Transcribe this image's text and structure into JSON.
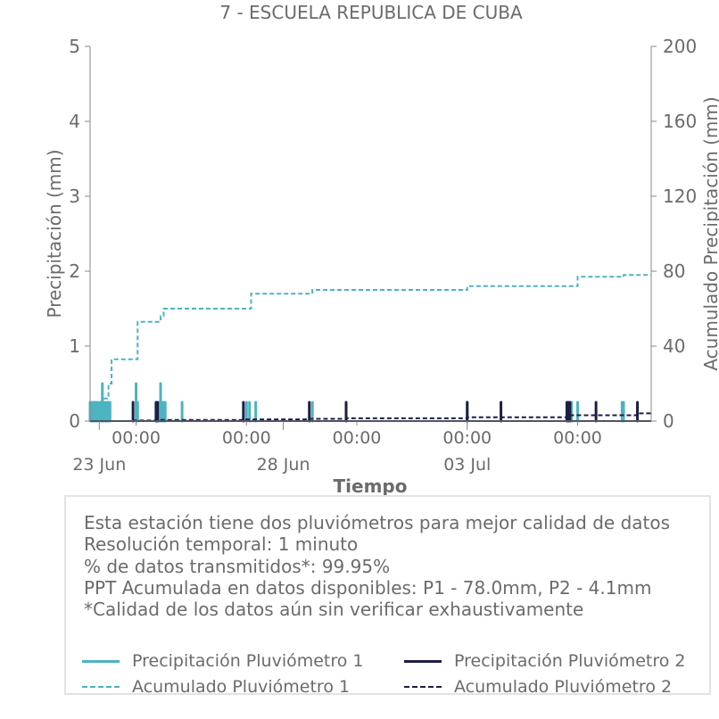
{
  "colors": {
    "p1": "#4db3c0",
    "p2": "#1c1f45",
    "axis": "#6b6b6b",
    "text": "#6b6b6b"
  },
  "info": {
    "lines": [
      "Esta estación tiene dos pluviómetros para mejor calidad de datos",
      "Resolución temporal: 1 minuto",
      "% de datos transmitidos*: 99.95%",
      "PPT Acumulada en datos disponibles: P1 - 78.0mm, P2 - 4.1mm",
      "*Calidad de los datos aún sin verificar exhaustivamente"
    ]
  },
  "legend": [
    {
      "label": "Precipitación Pluviómetro 1",
      "series": "p1",
      "style": "solid"
    },
    {
      "label": "Precipitación Pluviómetro 2",
      "series": "p2",
      "style": "solid"
    },
    {
      "label": "Acumulado Pluviómetro 1",
      "series": "p1",
      "style": "dashed"
    },
    {
      "label": "Acumulado Pluviómetro 2",
      "series": "p2",
      "style": "dashed"
    }
  ],
  "chart_data": {
    "type": "bar",
    "title": "7 - ESCUELA REPUBLICA DE CUBA",
    "xlabel": "Tiempo",
    "ylabel": "Precipitación (mm)",
    "y2label": "Acumulado Precipitación (mm)",
    "xlim": [
      "2025-06-22 18:00",
      "2025-07-08 00:00"
    ],
    "ylim": [
      0,
      5
    ],
    "y2lim": [
      0,
      200
    ],
    "yticks": [
      0,
      1,
      2,
      3,
      4,
      5
    ],
    "y2ticks": [
      0,
      40,
      80,
      120,
      160,
      200
    ],
    "xticks_major": [
      {
        "t": "2025-06-23 00:00",
        "label": "23 Jun"
      },
      {
        "t": "2025-06-28 00:00",
        "label": "28 Jun"
      },
      {
        "t": "2025-07-03 00:00",
        "label": "03 Jul"
      }
    ],
    "xticks_minor": [
      {
        "t": "2025-06-24 00:00",
        "label": "00:00"
      },
      {
        "t": "2025-06-27 00:00",
        "label": "00:00"
      },
      {
        "t": "2025-06-30 00:00",
        "label": "00:00"
      },
      {
        "t": "2025-07-03 00:00",
        "label": "00:00"
      },
      {
        "t": "2025-07-06 00:00",
        "label": "00:00"
      }
    ],
    "legend": "bottom",
    "series": [
      {
        "name": "Precipitación Pluviómetro 1",
        "kind": "bar",
        "x": [
          "2025-06-22 18:00",
          "2025-06-22 19:00",
          "2025-06-22 20:00",
          "2025-06-22 21:00",
          "2025-06-22 22:00",
          "2025-06-22 23:00",
          "2025-06-23 00:00",
          "2025-06-23 01:00",
          "2025-06-23 02:00",
          "2025-06-23 03:00",
          "2025-06-23 04:00",
          "2025-06-23 05:00",
          "2025-06-23 06:00",
          "2025-06-23 07:00",
          "2025-06-24 00:00",
          "2025-06-24 01:00",
          "2025-06-24 14:00",
          "2025-06-24 15:00",
          "2025-06-24 16:00",
          "2025-06-24 17:00",
          "2025-06-24 18:00",
          "2025-06-24 19:00",
          "2025-06-25 06:00",
          "2025-06-27 00:00",
          "2025-06-27 02:00",
          "2025-06-27 06:00",
          "2025-06-28 19:00",
          "2025-07-03 00:00",
          "2025-07-05 20:00",
          "2025-07-06 00:00",
          "2025-07-07 05:00",
          "2025-07-07 06:00"
        ],
        "values": [
          0.25,
          0.25,
          0.25,
          0.25,
          0.25,
          0.25,
          0.25,
          0.25,
          0.5,
          0.25,
          0.25,
          0.25,
          0.25,
          0.25,
          0.5,
          0.25,
          0.25,
          0.25,
          0.5,
          0.25,
          0.25,
          0.25,
          0.25,
          0.25,
          0.25,
          0.25,
          0.25,
          0.25,
          0.25,
          0.25,
          0.25,
          0.25
        ]
      },
      {
        "name": "Precipitación Pluviómetro 2",
        "kind": "bar",
        "x": [
          "2025-06-23 22:00",
          "2025-06-24 13:00",
          "2025-06-24 14:00",
          "2025-06-26 22:00",
          "2025-06-28 17:00",
          "2025-06-29 17:00",
          "2025-07-03 00:00",
          "2025-07-03 22:00",
          "2025-07-05 17:00",
          "2025-07-05 18:00",
          "2025-07-05 19:00",
          "2025-07-06 12:00",
          "2025-07-07 15:00"
        ],
        "values": [
          0.25,
          0.25,
          0.25,
          0.25,
          0.25,
          0.25,
          0.25,
          0.25,
          0.25,
          0.25,
          0.25,
          0.25,
          0.25
        ]
      },
      {
        "name": "Acumulado Pluviómetro 1",
        "kind": "step",
        "x": [
          "2025-06-22 18:00",
          "2025-06-23 01:00",
          "2025-06-23 03:00",
          "2025-06-23 06:00",
          "2025-06-23 08:00",
          "2025-06-24 00:00",
          "2025-06-24 01:00",
          "2025-06-24 14:00",
          "2025-06-24 16:00",
          "2025-06-24 18:00",
          "2025-06-24 20:00",
          "2025-06-27 00:00",
          "2025-06-27 03:00",
          "2025-06-28 19:00",
          "2025-07-03 00:00",
          "2025-07-05 20:00",
          "2025-07-06 00:00",
          "2025-07-07 06:00",
          "2025-07-08 00:00"
        ],
        "values": [
          0,
          6,
          12,
          20,
          33,
          33,
          53,
          53,
          56,
          60,
          60,
          60,
          68,
          70,
          72,
          72,
          77,
          78,
          78
        ]
      },
      {
        "name": "Acumulado Pluviómetro 2",
        "kind": "step",
        "x": [
          "2025-06-22 18:00",
          "2025-06-23 22:00",
          "2025-06-24 14:00",
          "2025-06-26 22:00",
          "2025-06-28 17:00",
          "2025-06-29 17:00",
          "2025-07-03 00:00",
          "2025-07-05 19:00",
          "2025-07-07 15:00",
          "2025-07-08 00:00"
        ],
        "values": [
          0,
          0.3,
          0.6,
          0.9,
          1.2,
          1.5,
          2.0,
          3.1,
          4.1,
          4.1
        ]
      }
    ]
  }
}
